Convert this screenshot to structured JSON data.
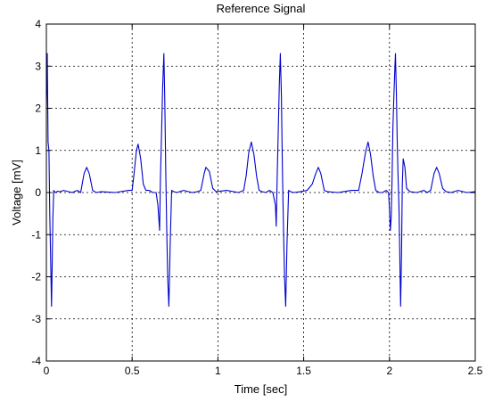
{
  "chart_data": {
    "type": "line",
    "title": "Reference Signal",
    "xlabel": "Time [sec]",
    "ylabel": "Voltage [mV]",
    "xlim": [
      0,
      2.5
    ],
    "ylim": [
      -4,
      4
    ],
    "xticks": [
      0,
      0.5,
      1,
      1.5,
      2,
      2.5
    ],
    "xtick_labels": [
      "0",
      "0.5",
      "1",
      "1.5",
      "2",
      "2.5"
    ],
    "yticks": [
      -4,
      -3,
      -2,
      -1,
      0,
      1,
      2,
      3,
      4
    ],
    "ytick_labels": [
      "-4",
      "-3",
      "-2",
      "-1",
      "0",
      "1",
      "2",
      "3",
      "4"
    ],
    "grid": true,
    "grid_style": "dotted",
    "line_color": "#0000cc",
    "background": "#ffffff",
    "series": [
      {
        "x": [
          0.0,
          0.005,
          0.01,
          0.015,
          0.02,
          0.03,
          0.038,
          0.043,
          0.048,
          0.055,
          0.065,
          0.08,
          0.1,
          0.15,
          0.18,
          0.2,
          0.22,
          0.235,
          0.25,
          0.27,
          0.29,
          0.32,
          0.4,
          0.48,
          0.5,
          0.51,
          0.525,
          0.535,
          0.55,
          0.565,
          0.58,
          0.6,
          0.62,
          0.64,
          0.65,
          0.66,
          0.665,
          0.672,
          0.678,
          0.685,
          0.69,
          0.696,
          0.702,
          0.708,
          0.714,
          0.722,
          0.73,
          0.745,
          0.76,
          0.8,
          0.85,
          0.88,
          0.9,
          0.92,
          0.93,
          0.95,
          0.97,
          0.99,
          1.05,
          1.12,
          1.15,
          1.165,
          1.18,
          1.195,
          1.21,
          1.225,
          1.24,
          1.26,
          1.28,
          1.3,
          1.32,
          1.335,
          1.34,
          1.345,
          1.352,
          1.358,
          1.364,
          1.37,
          1.376,
          1.382,
          1.388,
          1.395,
          1.403,
          1.412,
          1.425,
          1.44,
          1.48,
          1.52,
          1.55,
          1.57,
          1.585,
          1.6,
          1.62,
          1.64,
          1.7,
          1.78,
          1.82,
          1.84,
          1.86,
          1.875,
          1.89,
          1.905,
          1.92,
          1.94,
          1.96,
          1.98,
          1.995,
          2.0,
          2.005,
          2.01,
          2.015,
          2.02,
          2.025,
          2.03,
          2.035,
          2.04,
          2.045,
          2.05,
          2.055,
          2.06,
          2.065,
          2.07,
          2.075,
          2.08,
          2.09,
          2.1,
          2.12,
          2.16,
          2.2,
          2.22,
          2.24,
          2.26,
          2.275,
          2.29,
          2.31,
          2.33,
          2.36,
          2.4,
          2.45,
          2.5
        ],
        "y": [
          2.0,
          3.3,
          1.2,
          1.0,
          -0.5,
          -2.7,
          -0.6,
          0.05,
          0.02,
          0.0,
          0.03,
          0.02,
          0.05,
          0.0,
          0.05,
          0.0,
          0.45,
          0.6,
          0.45,
          0.05,
          0.0,
          0.02,
          0.0,
          0.05,
          0.05,
          0.4,
          1.0,
          1.15,
          0.8,
          0.2,
          0.05,
          0.05,
          0.0,
          0.0,
          -0.3,
          -0.9,
          0.3,
          1.5,
          2.5,
          3.3,
          2.2,
          0.5,
          -1.0,
          -2.1,
          -2.7,
          -1.2,
          0.05,
          0.02,
          0.0,
          0.05,
          0.0,
          0.02,
          0.05,
          0.45,
          0.6,
          0.5,
          0.1,
          0.02,
          0.05,
          0.0,
          0.05,
          0.4,
          0.95,
          1.2,
          0.9,
          0.4,
          0.05,
          0.02,
          0.0,
          0.05,
          0.0,
          -0.3,
          -0.8,
          0.3,
          1.5,
          2.6,
          3.3,
          2.3,
          0.6,
          -0.8,
          -2.0,
          -2.7,
          -1.2,
          0.05,
          0.02,
          0.0,
          0.02,
          0.05,
          0.2,
          0.45,
          0.6,
          0.45,
          0.05,
          0.02,
          0.0,
          0.05,
          0.05,
          0.45,
          0.95,
          1.2,
          0.9,
          0.4,
          0.05,
          0.0,
          0.0,
          0.05,
          0.0,
          -0.4,
          -0.9,
          -0.6,
          0.3,
          1.5,
          2.2,
          2.8,
          3.3,
          2.4,
          1.2,
          0.4,
          -0.3,
          -1.4,
          -2.7,
          -1.5,
          0.2,
          0.8,
          0.6,
          0.1,
          0.02,
          0.0,
          0.05,
          0.0,
          0.05,
          0.45,
          0.6,
          0.45,
          0.1,
          0.02,
          0.0,
          0.05,
          0.0,
          0.02
        ]
      }
    ]
  }
}
